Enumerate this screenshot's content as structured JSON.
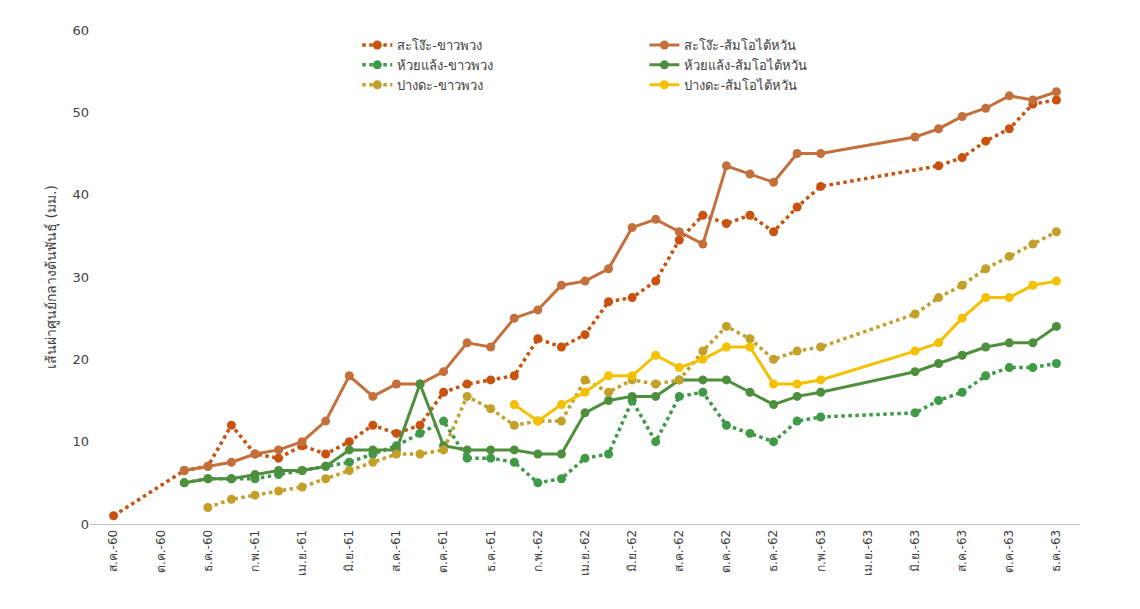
{
  "chart_data": {
    "type": "line",
    "y_label": "เส้นผ่าศูนย์กลางต้นพันธุ์ (มม.)",
    "categories": [
      "ส.ค.-60",
      null,
      "ต.ค.-60",
      null,
      "ธ.ค.-60",
      null,
      "ก.พ.-61",
      null,
      "เม.ย.-61",
      null,
      "มิ.ย.-61",
      null,
      "ส.ค.-61",
      null,
      "ต.ค.-61",
      null,
      "ธ.ค.-61",
      null,
      "ก.พ.-62",
      null,
      "เม.ย.-62",
      null,
      "มิ.ย.-62",
      null,
      "ส.ค.-62",
      null,
      "ต.ค.-62",
      null,
      "ธ.ค.-62",
      null,
      "ก.พ.-63",
      null,
      "เม.ย.-63",
      null,
      "มิ.ย.-63",
      null,
      "ส.ค.-63",
      null,
      "ต.ค.-63",
      null,
      "ธ.ค.-63"
    ],
    "series": [
      {
        "name": "สะโง๊ะ-ขาวพวง",
        "color": "#c9520e",
        "line_style": "dotted",
        "marker": "circle",
        "values": [
          1,
          null,
          null,
          6.5,
          7,
          12,
          8.5,
          8,
          9.5,
          8.5,
          10,
          12,
          11,
          12,
          16,
          17,
          17.5,
          18,
          22.5,
          21.5,
          23,
          27,
          27.5,
          29.5,
          34.5,
          37.5,
          36.5,
          37.5,
          35.5,
          38.5,
          41,
          null,
          null,
          null,
          null,
          43.5,
          44.5,
          46.5,
          48,
          51,
          51.5
        ]
      },
      {
        "name": "สะโง๊ะ-ส้มโอไต้หวัน",
        "color": "#c4703c",
        "line_style": "solid",
        "marker": "circle",
        "values": [
          null,
          null,
          null,
          6.5,
          7,
          7.5,
          8.5,
          9,
          10,
          12.5,
          18,
          15.5,
          17,
          17,
          18.5,
          22,
          21.5,
          25,
          26,
          29,
          29.5,
          31,
          36,
          37,
          35.5,
          34,
          43.5,
          42.5,
          41.5,
          45,
          45,
          null,
          null,
          null,
          47,
          48,
          49.5,
          50.5,
          52,
          51.5,
          52.5
        ]
      },
      {
        "name": "ห้วยแล้ง-ขาวพวง",
        "color": "#3f9a48",
        "line_style": "dotted",
        "marker": "circle",
        "values": [
          null,
          null,
          null,
          5,
          5.5,
          5.5,
          5.5,
          6,
          6.5,
          7,
          7.5,
          8.5,
          9.5,
          11,
          12.5,
          8,
          8,
          7.5,
          5,
          5.5,
          8,
          8.5,
          15,
          10,
          15.5,
          16,
          12,
          11,
          10,
          12.5,
          13,
          null,
          null,
          null,
          13.5,
          15,
          16,
          18,
          19,
          19,
          19.5
        ]
      },
      {
        "name": "ห้วยแล้ง-ส้มโอไต้หวัน",
        "color": "#4e8f3e",
        "line_style": "solid",
        "marker": "circle",
        "values": [
          null,
          null,
          null,
          5,
          5.5,
          5.5,
          6,
          6.5,
          6.5,
          7,
          9,
          9,
          9,
          17,
          9.5,
          9,
          9,
          9,
          8.5,
          8.5,
          13.5,
          15,
          15.5,
          15.5,
          17.5,
          17.5,
          17.5,
          16,
          14.5,
          15.5,
          16,
          null,
          null,
          null,
          18.5,
          19.5,
          20.5,
          21.5,
          22,
          22,
          24
        ]
      },
      {
        "name": "ปางดะ-ขาวพวง",
        "color": "#c2a02a",
        "line_style": "dotted",
        "marker": "circle",
        "values": [
          null,
          null,
          null,
          null,
          2,
          3,
          3.5,
          4,
          4.5,
          5.5,
          6.5,
          7.5,
          8.5,
          8.5,
          9,
          15.5,
          14,
          12,
          12.5,
          12.5,
          17.5,
          16,
          17.5,
          17,
          17.5,
          21,
          24,
          22.5,
          20,
          21,
          21.5,
          null,
          null,
          null,
          25.5,
          27.5,
          29,
          31,
          32.5,
          34,
          35.5
        ]
      },
      {
        "name": "ปางดะ-ส้มโอไต้หวัน",
        "color": "#f5c000",
        "line_style": "solid",
        "marker": "circle",
        "values": [
          null,
          null,
          null,
          null,
          null,
          null,
          null,
          null,
          null,
          null,
          null,
          null,
          null,
          null,
          null,
          null,
          null,
          14.5,
          12.5,
          14.5,
          16,
          18,
          18,
          20.5,
          19,
          20,
          21.5,
          21.5,
          17,
          17,
          17.5,
          null,
          null,
          null,
          21,
          22,
          25,
          27.5,
          27.5,
          29,
          29.5
        ]
      }
    ],
    "ylim": [
      0,
      60
    ],
    "yticks": [
      0,
      10,
      20,
      30,
      40,
      50,
      60
    ],
    "grid": false,
    "legend": "top"
  }
}
